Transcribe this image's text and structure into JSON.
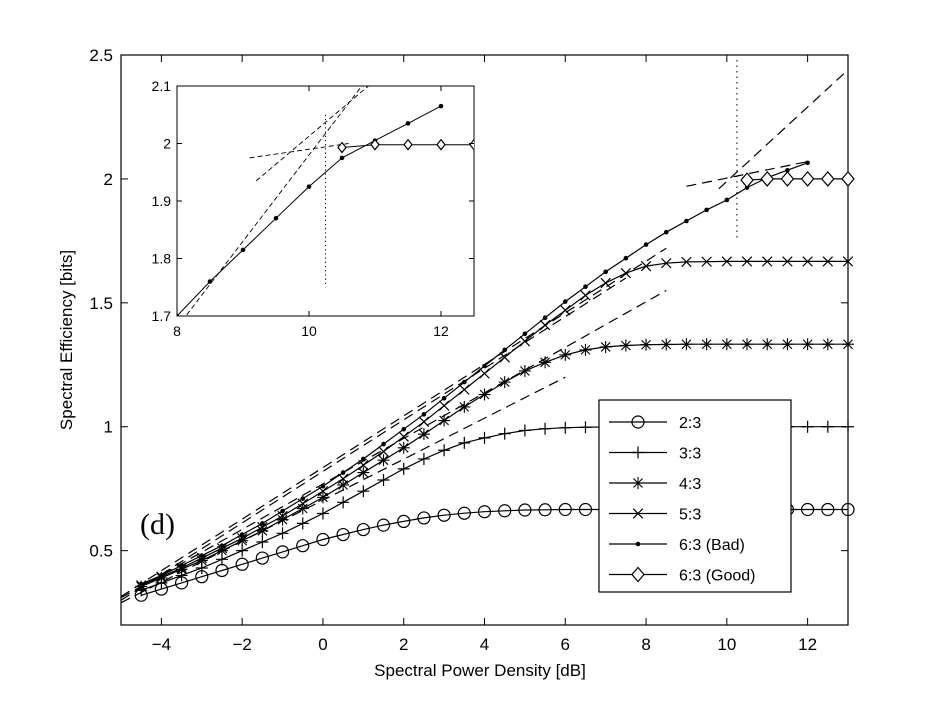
{
  "chart_data": {
    "type": "line",
    "xlabel": "Spectral Power Density [dB]",
    "ylabel": "Spectral Efficiency [bits]",
    "panel_label": "(d)",
    "xlim": [
      -5,
      13
    ],
    "ylim": [
      0.2,
      2.5
    ],
    "xticks": [
      -4,
      -2,
      0,
      2,
      4,
      6,
      8,
      10,
      12
    ],
    "yticks": [
      0.5,
      1,
      1.5,
      2,
      2.5
    ],
    "grid": false,
    "legend_position": "bottom-right",
    "vline_x": 10.25,
    "series": [
      {
        "name": "2:3",
        "marker": "circle",
        "x": [
          -4.5,
          -4,
          -3.5,
          -3,
          -2.5,
          -2,
          -1.5,
          -1,
          -0.5,
          0,
          0.5,
          1,
          1.5,
          2,
          2.5,
          3,
          3.5,
          4,
          4.5,
          5,
          5.5,
          6,
          6.5,
          7,
          7.5,
          8,
          8.5,
          9,
          9.5,
          10,
          10.5,
          11,
          11.5,
          12,
          12.5,
          13
        ],
        "y": [
          0.32,
          0.345,
          0.37,
          0.395,
          0.42,
          0.445,
          0.47,
          0.495,
          0.52,
          0.545,
          0.565,
          0.585,
          0.603,
          0.618,
          0.632,
          0.643,
          0.651,
          0.657,
          0.661,
          0.664,
          0.665,
          0.666,
          0.666,
          0.666,
          0.666,
          0.666,
          0.666,
          0.666,
          0.666,
          0.666,
          0.666,
          0.666,
          0.666,
          0.666,
          0.666,
          0.666
        ]
      },
      {
        "name": "3:3",
        "marker": "plus",
        "x": [
          -4.5,
          -4,
          -3.5,
          -3,
          -2.5,
          -2,
          -1.5,
          -1,
          -0.5,
          0,
          0.5,
          1,
          1.5,
          2,
          2.5,
          3,
          3.5,
          4,
          4.5,
          5,
          5.5,
          6,
          6.5,
          7,
          7.5,
          8,
          8.5,
          9,
          9.5,
          10,
          10.5,
          11,
          11.5,
          12,
          12.5,
          13
        ],
        "y": [
          0.34,
          0.37,
          0.4,
          0.43,
          0.465,
          0.5,
          0.535,
          0.57,
          0.61,
          0.65,
          0.695,
          0.74,
          0.785,
          0.83,
          0.87,
          0.905,
          0.935,
          0.955,
          0.972,
          0.985,
          0.992,
          0.996,
          0.998,
          0.999,
          1,
          1,
          1,
          1,
          1,
          1,
          1,
          1,
          1,
          1,
          1,
          1
        ]
      },
      {
        "name": "4:3",
        "marker": "star",
        "x": [
          -4.5,
          -4,
          -3.5,
          -3,
          -2.5,
          -2,
          -1.5,
          -1,
          -0.5,
          0,
          0.5,
          1,
          1.5,
          2,
          2.5,
          3,
          3.5,
          4,
          4.5,
          5,
          5.5,
          6,
          6.5,
          7,
          7.5,
          8,
          8.5,
          9,
          9.5,
          10,
          10.5,
          11,
          11.5,
          12,
          12.5,
          13
        ],
        "y": [
          0.355,
          0.39,
          0.425,
          0.46,
          0.5,
          0.54,
          0.58,
          0.625,
          0.67,
          0.715,
          0.765,
          0.815,
          0.865,
          0.915,
          0.97,
          1.025,
          1.08,
          1.13,
          1.18,
          1.225,
          1.26,
          1.29,
          1.31,
          1.322,
          1.328,
          1.331,
          1.332,
          1.333,
          1.333,
          1.333,
          1.333,
          1.333,
          1.333,
          1.333,
          1.333,
          1.333
        ]
      },
      {
        "name": "5:3",
        "marker": "x",
        "x": [
          -4.5,
          -4,
          -3.5,
          -3,
          -2.5,
          -2,
          -1.5,
          -1,
          -0.5,
          0,
          0.5,
          1,
          1.5,
          2,
          2.5,
          3,
          3.5,
          4,
          4.5,
          5,
          5.5,
          6,
          6.5,
          7,
          7.5,
          8,
          8.5,
          9,
          9.5,
          10,
          10.5,
          11,
          11.5,
          12,
          12.5,
          13
        ],
        "y": [
          0.36,
          0.395,
          0.43,
          0.47,
          0.51,
          0.55,
          0.595,
          0.64,
          0.69,
          0.74,
          0.79,
          0.845,
          0.9,
          0.96,
          1.02,
          1.085,
          1.15,
          1.215,
          1.28,
          1.345,
          1.41,
          1.47,
          1.53,
          1.58,
          1.62,
          1.648,
          1.66,
          1.665,
          1.666,
          1.667,
          1.667,
          1.667,
          1.667,
          1.667,
          1.667,
          1.667
        ]
      },
      {
        "name": "6:3 (Bad)",
        "marker": "dot",
        "x": [
          -4.5,
          -4,
          -3.5,
          -3,
          -2.5,
          -2,
          -1.5,
          -1,
          -0.5,
          0,
          0.5,
          1,
          1.5,
          2,
          2.5,
          3,
          3.5,
          4,
          4.5,
          5,
          5.5,
          6,
          6.5,
          7,
          7.5,
          8,
          8.5,
          9,
          9.5,
          10,
          10.5,
          11,
          11.5,
          12
        ],
        "y": [
          0.365,
          0.4,
          0.44,
          0.48,
          0.52,
          0.565,
          0.61,
          0.66,
          0.71,
          0.76,
          0.815,
          0.87,
          0.93,
          0.99,
          1.05,
          1.115,
          1.18,
          1.245,
          1.31,
          1.375,
          1.44,
          1.505,
          1.565,
          1.625,
          1.68,
          1.735,
          1.785,
          1.83,
          1.875,
          1.915,
          1.965,
          2.005,
          2.035,
          2.065
        ]
      },
      {
        "name": "6:3 (Good)",
        "marker": "diamond",
        "x": [
          10.5,
          11,
          11.5,
          12,
          12.5,
          13
        ],
        "y": [
          1.995,
          2,
          2,
          2,
          2,
          2
        ]
      }
    ],
    "dashed_lines": [
      {
        "x": [
          -5,
          8.5
        ],
        "y": [
          0.315,
          1.72
        ]
      },
      {
        "x": [
          -5,
          7.5
        ],
        "y": [
          0.3,
          1.6
        ]
      },
      {
        "x": [
          -5,
          8.5
        ],
        "y": [
          0.31,
          1.55
        ]
      },
      {
        "x": [
          -5,
          6
        ],
        "y": [
          0.29,
          1.2
        ]
      },
      {
        "x": [
          9.8,
          13
        ],
        "y": [
          1.96,
          2.44
        ]
      },
      {
        "x": [
          9,
          12
        ],
        "y": [
          1.97,
          2.07
        ]
      }
    ],
    "inset": {
      "xlim": [
        8,
        12.5
      ],
      "ylim": [
        1.7,
        2.1
      ],
      "xticks": [
        8,
        10,
        12
      ],
      "yticks": [
        1.7,
        1.8,
        1.9,
        2,
        2.1
      ],
      "vline_x": 10.25,
      "bad": {
        "x": [
          8,
          8.5,
          9,
          9.5,
          10,
          10.5,
          11,
          11.5,
          12
        ],
        "y": [
          1.7,
          1.76,
          1.815,
          1.87,
          1.925,
          1.975,
          2.005,
          2.035,
          2.065
        ]
      },
      "good": {
        "x": [
          10.5,
          11,
          11.5,
          12,
          12.5
        ],
        "y": [
          1.993,
          1.998,
          1.998,
          1.998,
          1.998
        ]
      },
      "dashed_lines": [
        {
          "x": [
            8,
            10.8
          ],
          "y": [
            1.68,
            2.1
          ]
        },
        {
          "x": [
            9.2,
            10.9
          ],
          "y": [
            1.935,
            2.1
          ]
        },
        {
          "x": [
            9.1,
            10.6
          ],
          "y": [
            1.975,
            2.0
          ]
        }
      ]
    }
  }
}
